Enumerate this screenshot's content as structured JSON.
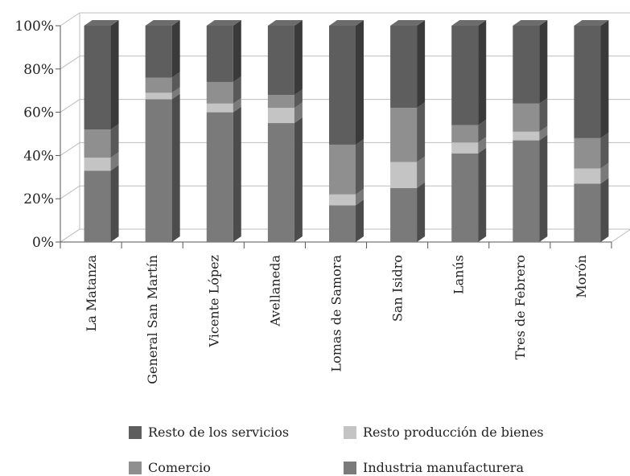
{
  "chart_data": {
    "type": "bar",
    "stacked": true,
    "three_d": true,
    "categories": [
      "La Matanza",
      "General San Martín",
      "Vicente López",
      "Avellaneda",
      "Lomas de Samora",
      "San Isidro",
      "Lanús",
      "Tres de Febrero",
      "Morón"
    ],
    "y_ticks": [
      "0%",
      "20%",
      "40%",
      "60%",
      "80%",
      "100%"
    ],
    "ylim": [
      0,
      100
    ],
    "unit": "%",
    "grid": true,
    "legend_position": "bottom",
    "series": [
      {
        "name": "Industria manufacturera",
        "color": "#7a7a7a",
        "values": [
          33,
          66,
          60,
          55,
          17,
          25,
          41,
          47,
          27
        ]
      },
      {
        "name": "Resto producción de bienes",
        "color": "#c4c4c4",
        "values": [
          6,
          3,
          4,
          7,
          5,
          12,
          5,
          4,
          7
        ]
      },
      {
        "name": "Comercio",
        "color": "#8f8f8f",
        "values": [
          13,
          7,
          10,
          6,
          23,
          25,
          8,
          13,
          14
        ]
      },
      {
        "name": "Resto de los servicios",
        "color": "#5e5e5e",
        "values": [
          48,
          24,
          26,
          32,
          55,
          38,
          46,
          36,
          52
        ]
      }
    ],
    "legend": [
      {
        "label": "Resto de los servicios",
        "color": "#5e5e5e"
      },
      {
        "label": "Resto producción de bienes",
        "color": "#c4c4c4"
      },
      {
        "label": "Comercio",
        "color": "#8f8f8f"
      },
      {
        "label": "Industria manufacturera",
        "color": "#7a7a7a"
      }
    ]
  }
}
